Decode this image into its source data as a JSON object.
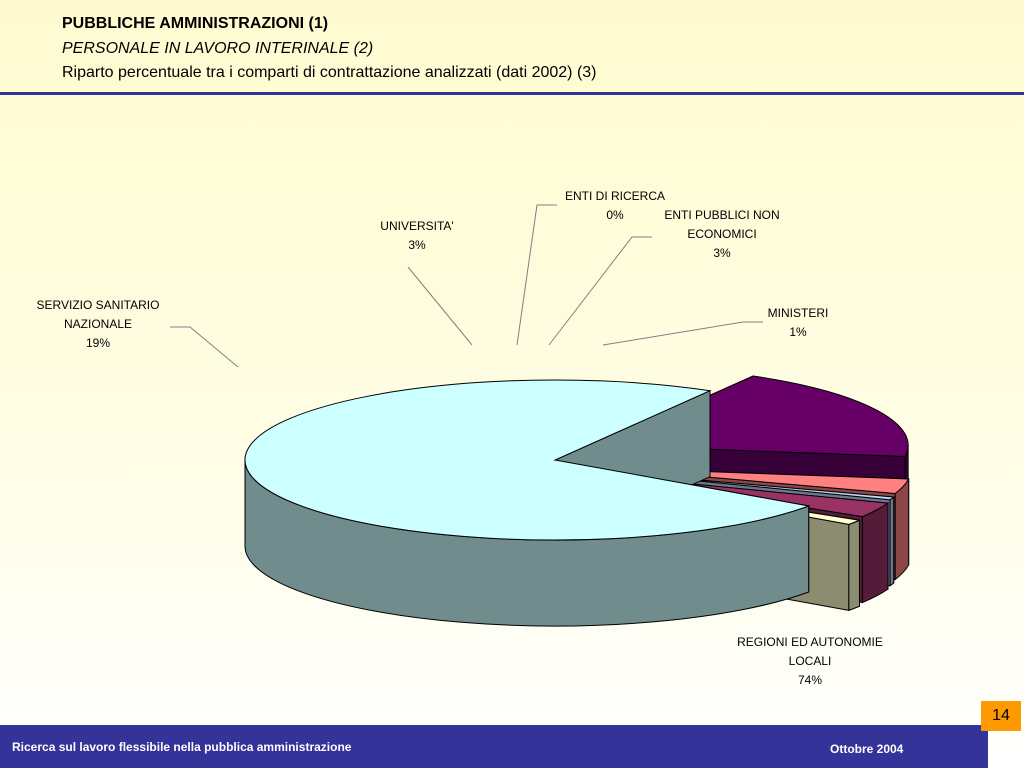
{
  "header": {
    "title": "PUBBLICHE AMMINISTRAZIONI (1)",
    "subtitle": "PERSONALE  IN LAVORO INTERINALE (2)",
    "description": "Riparto percentuale tra i comparti di contrattazione analizzati (dati 2002) (3)"
  },
  "chart_data": {
    "type": "pie",
    "style": "3d-exploded",
    "unit": "%",
    "slices": [
      {
        "name": "SERVIZIO SANITARIO NAZIONALE",
        "label_lines": [
          "SERVIZIO SANITARIO",
          "NAZIONALE"
        ],
        "value": 19,
        "value_label": "19%",
        "color": "#660066"
      },
      {
        "name": "UNIVERSITA'",
        "label_lines": [
          "UNIVERSITA'"
        ],
        "value": 3,
        "value_label": "3%",
        "color": "#ff8080"
      },
      {
        "name": "ENTI DI RICERCA",
        "label_lines": [
          "ENTI DI RICERCA"
        ],
        "value": 0,
        "value_label": "0%",
        "color": "#c0d8ff"
      },
      {
        "name": "ENTI PUBBLICI NON ECONOMICI",
        "label_lines": [
          "ENTI PUBBLICI NON",
          "ECONOMICI"
        ],
        "value": 3,
        "value_label": "3%",
        "color": "#993366"
      },
      {
        "name": "MINISTERI",
        "label_lines": [
          "MINISTERI"
        ],
        "value": 1,
        "value_label": "1%",
        "color": "#ffffcc"
      },
      {
        "name": "REGIONI ED AUTONOMIE LOCALI",
        "label_lines": [
          "REGIONI ED AUTONOMIE",
          "LOCALI"
        ],
        "value": 74,
        "value_label": "74%",
        "color": "#ccffff"
      }
    ]
  },
  "footer": {
    "left": "Ricerca sul lavoro flessibile nella pubblica amministrazione",
    "right": "Ottobre 2004",
    "page_number": "14",
    "bar_color": "#33339a",
    "page_badge_color": "#ff9900"
  }
}
